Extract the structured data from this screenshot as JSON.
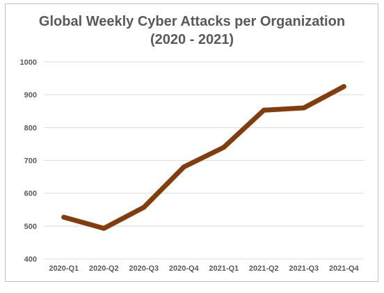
{
  "chart_data": {
    "type": "line",
    "title": "Global Weekly Cyber Attacks per Organization",
    "subtitle": "(2020 - 2021)",
    "xlabel": "",
    "ylabel": "",
    "categories": [
      "2020-Q1",
      "2020-Q2",
      "2020-Q3",
      "2020-Q4",
      "2021-Q1",
      "2021-Q2",
      "2021-Q3",
      "2021-Q4"
    ],
    "series": [
      {
        "values": [
          527,
          493,
          557,
          680,
          740,
          853,
          860,
          925
        ]
      }
    ],
    "ylim": [
      400,
      1000
    ],
    "yticks": [
      400,
      500,
      600,
      700,
      800,
      900,
      1000
    ],
    "grid": true,
    "legend": "none",
    "line_color": "#843c0c",
    "grid_color": "#d9d9d9",
    "text_color": "#595959"
  }
}
